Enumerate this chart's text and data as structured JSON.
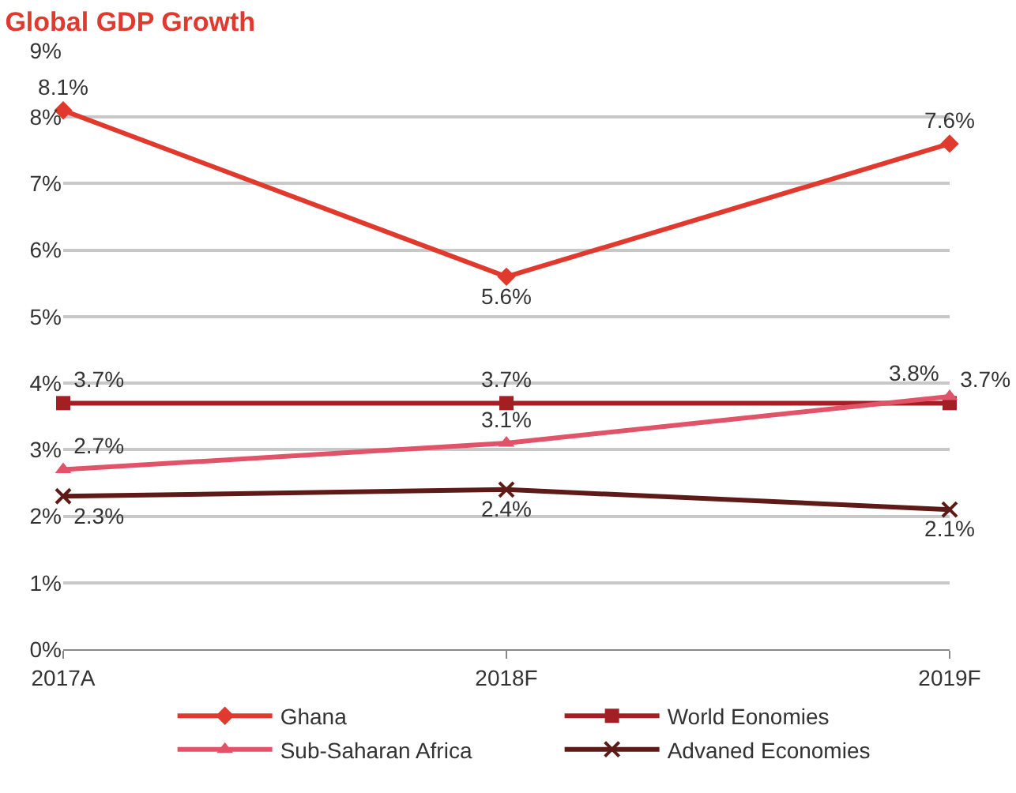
{
  "chart_data": {
    "type": "line",
    "title": "Global GDP Growth",
    "categories": [
      "2017A",
      "2018F",
      "2019F"
    ],
    "series": [
      {
        "name": "Ghana",
        "color": "#e03a2f",
        "marker": "diamond",
        "values": [
          8.1,
          5.6,
          7.6
        ],
        "value_labels": [
          "8.1%",
          "5.6%",
          "7.6%"
        ]
      },
      {
        "name": "World Eonomies",
        "color": "#a31f24",
        "marker": "square",
        "values": [
          3.7,
          3.7,
          3.7
        ],
        "value_labels": [
          "3.7%",
          "3.7%",
          "3.7%"
        ]
      },
      {
        "name": "Sub-Saharan Africa",
        "color": "#e05369",
        "marker": "triangle",
        "values": [
          2.7,
          3.1,
          3.8
        ],
        "value_labels": [
          "2.7%",
          "3.1%",
          "3.8%"
        ]
      },
      {
        "name": "Advaned Economies",
        "color": "#5e1a17",
        "marker": "cross",
        "values": [
          2.3,
          2.4,
          2.1
        ],
        "value_labels": [
          "2.3%",
          "2.4%",
          "2.1%"
        ]
      }
    ],
    "ylim": [
      0,
      9
    ],
    "yticks": [
      {
        "value": 0,
        "label": "0%"
      },
      {
        "value": 1,
        "label": "1%"
      },
      {
        "value": 2,
        "label": "2%"
      },
      {
        "value": 3,
        "label": "3%"
      },
      {
        "value": 4,
        "label": "4%"
      },
      {
        "value": 5,
        "label": "5%"
      },
      {
        "value": 6,
        "label": "6%"
      },
      {
        "value": 7,
        "label": "7%"
      },
      {
        "value": 8,
        "label": "8%"
      },
      {
        "value": 9,
        "label": "9%"
      }
    ],
    "grid": "y",
    "legend": "bottom",
    "line_style": "solid"
  }
}
